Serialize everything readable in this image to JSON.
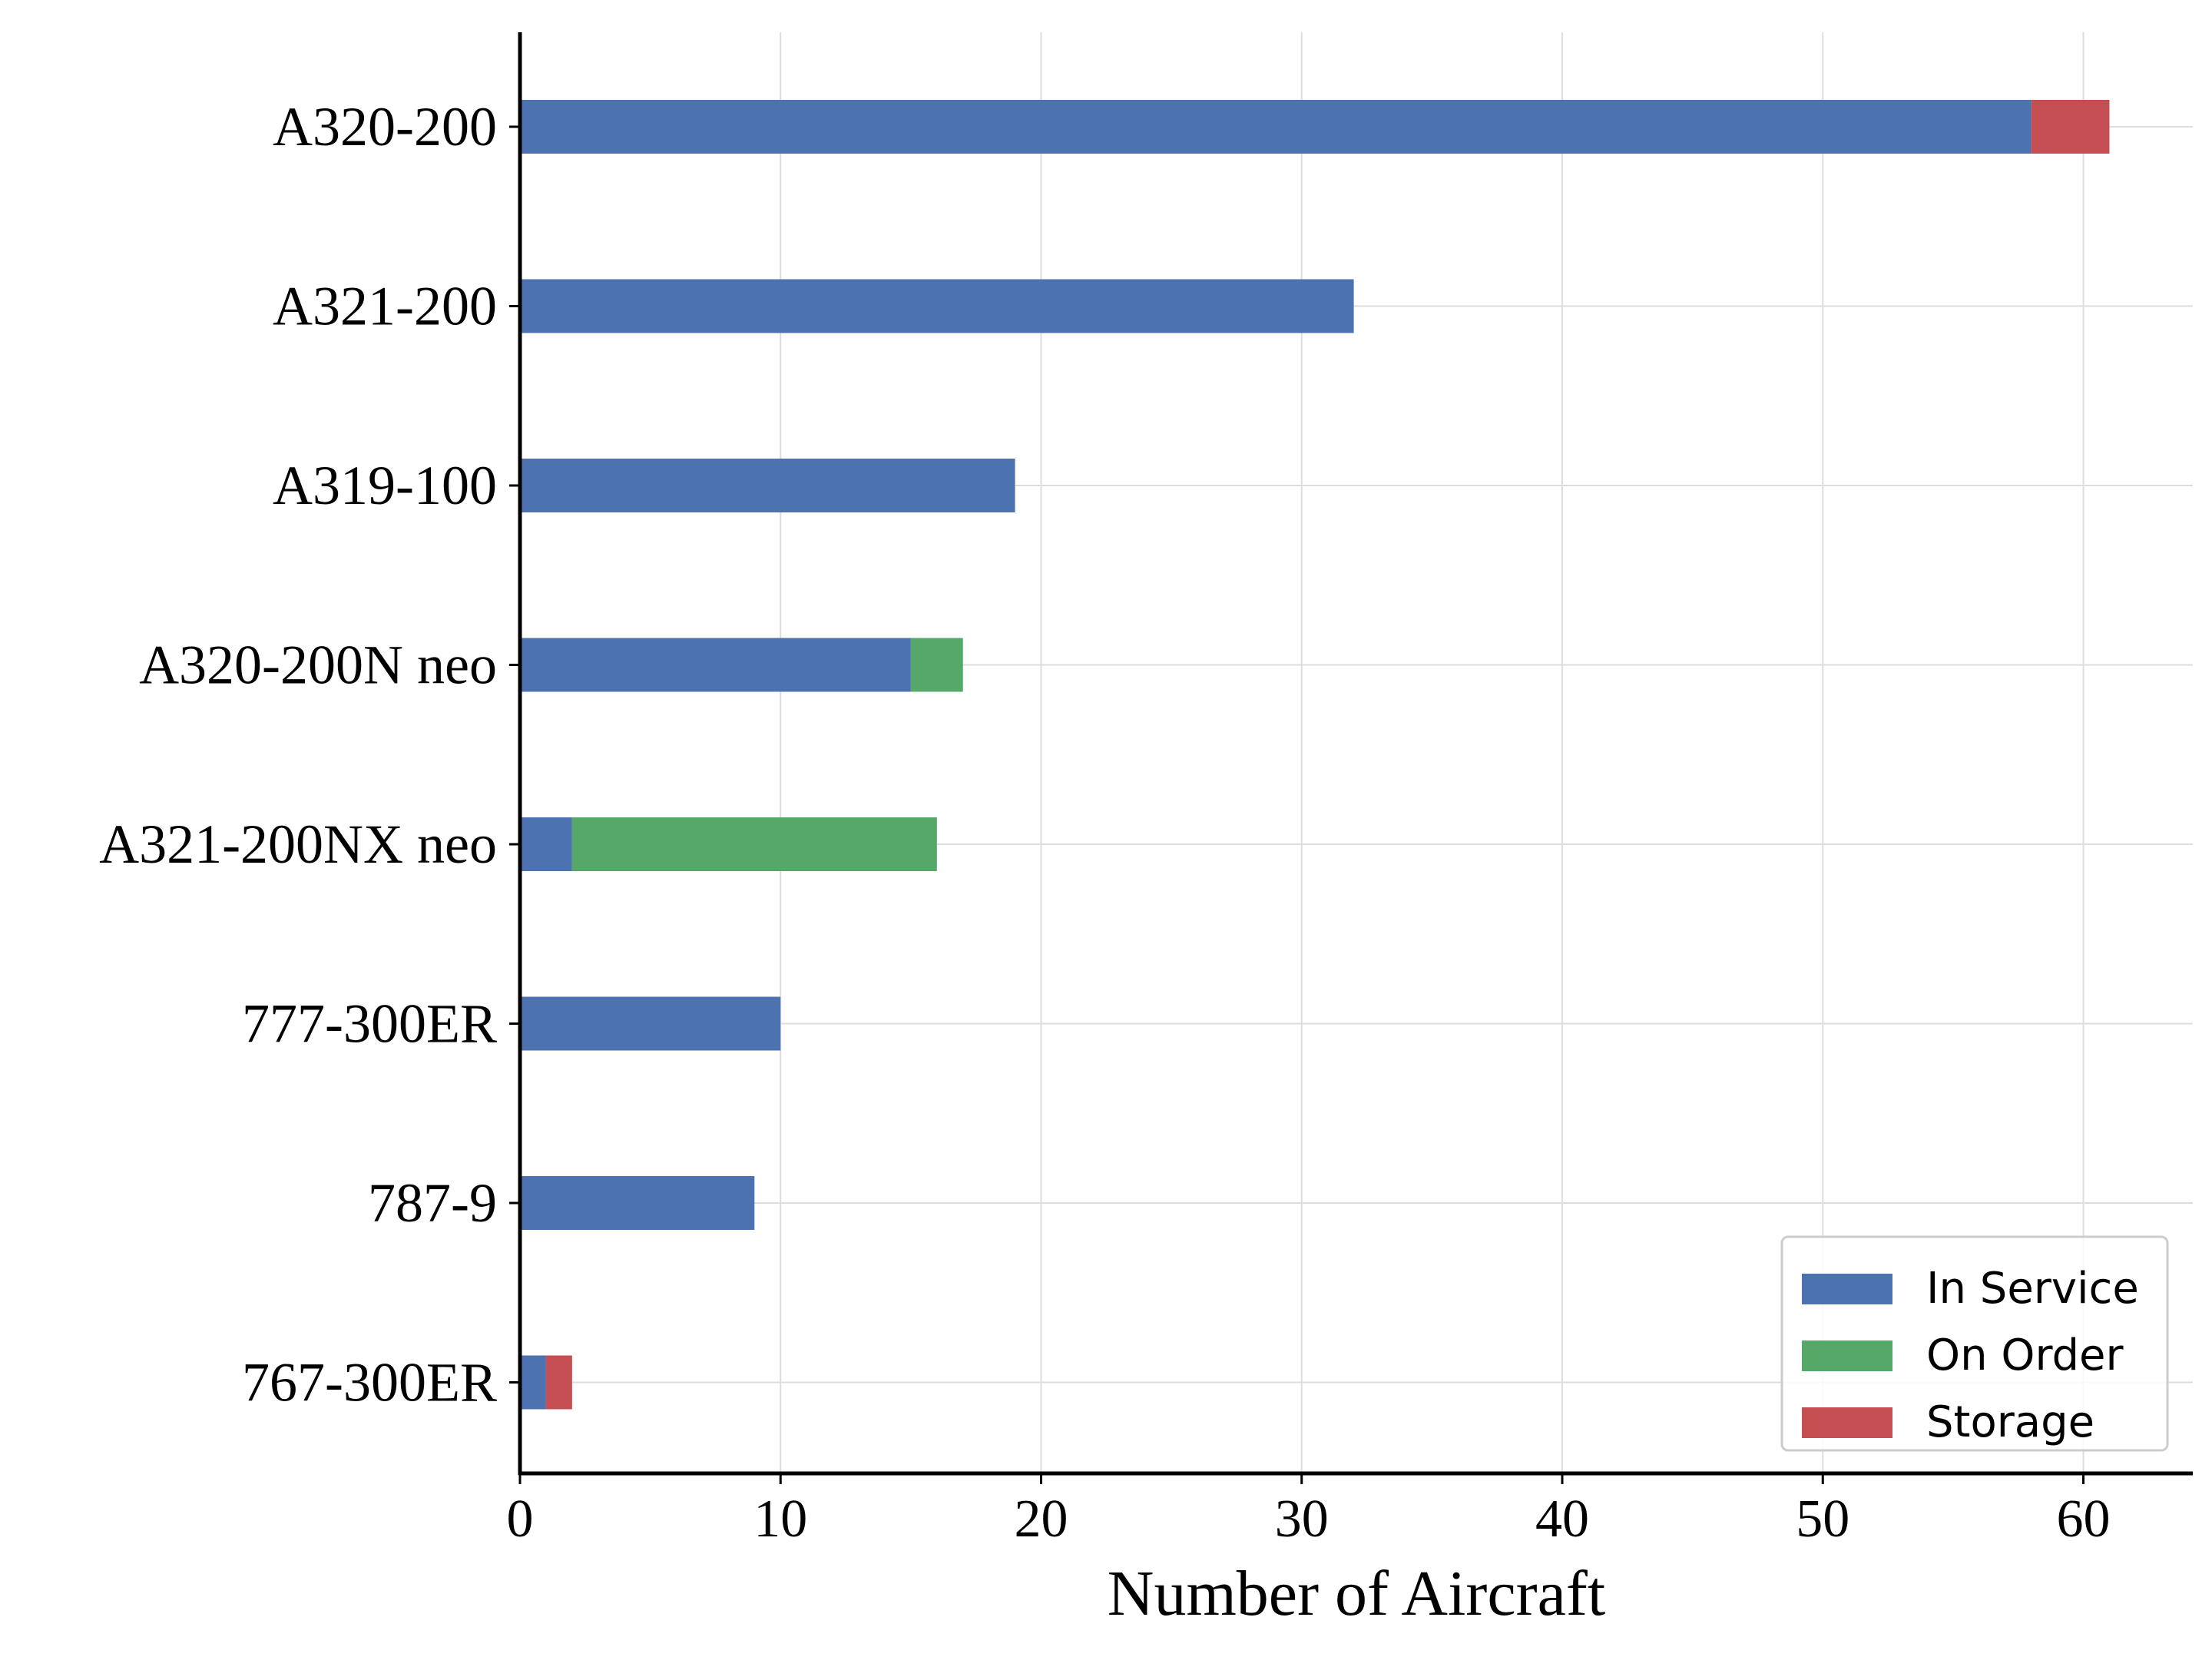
{
  "chart_data": {
    "type": "bar",
    "orientation": "horizontal",
    "stacked": true,
    "categories": [
      "A320-200",
      "A321-200",
      "A319-100",
      "A320-200N neo",
      "A321-200NX neo",
      "777-300ER",
      "787-9",
      "767-300ER"
    ],
    "series": [
      {
        "name": "In Service",
        "color": "#4c72b0",
        "values": [
          58,
          32,
          19,
          15,
          2,
          10,
          9,
          1
        ]
      },
      {
        "name": "On Order",
        "color": "#55a868",
        "values": [
          0,
          0,
          0,
          2,
          14,
          0,
          0,
          0
        ]
      },
      {
        "name": "Storage",
        "color": "#c44e52",
        "values": [
          3,
          0,
          0,
          0,
          0,
          0,
          0,
          1
        ]
      }
    ],
    "xlabel": "Number of Aircraft",
    "ylabel": "",
    "title": "",
    "xlim": [
      0,
      64.2
    ],
    "xticks": [
      0,
      10,
      20,
      30,
      40,
      50,
      60
    ],
    "xtick_labels": [
      "0",
      "10",
      "20",
      "30",
      "40",
      "50",
      "60"
    ],
    "grid": true,
    "legend": "lower right"
  }
}
